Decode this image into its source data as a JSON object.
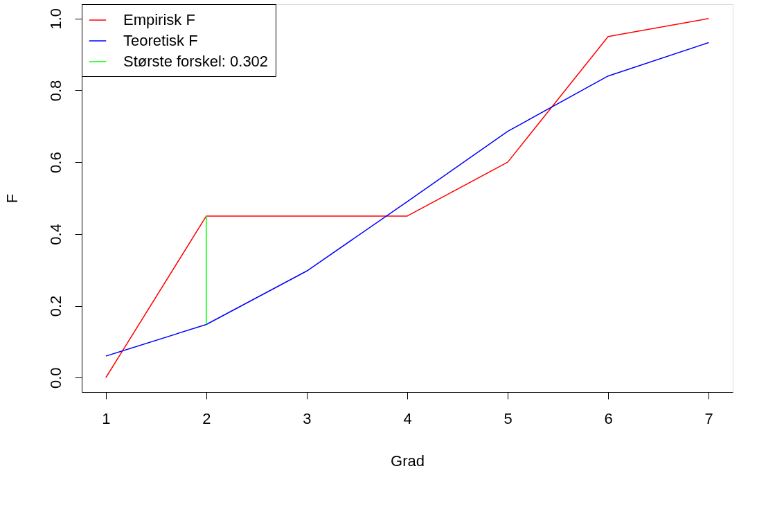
{
  "chart_data": {
    "type": "line",
    "xlabel": "Grad",
    "ylabel": "F",
    "xlim": [
      0.76,
      7.24
    ],
    "xticks": [
      1,
      2,
      3,
      4,
      5,
      6,
      7
    ],
    "ylim": [
      -0.04,
      1.04
    ],
    "yticks": [
      {
        "value": 0,
        "label": "0.0"
      },
      {
        "value": 0.2,
        "label": "0.2"
      },
      {
        "value": 0.4,
        "label": "0.4"
      },
      {
        "value": 0.6,
        "label": "0.6"
      },
      {
        "value": 0.8,
        "label": "0.8"
      },
      {
        "value": 1,
        "label": "1.0"
      }
    ],
    "grid": false,
    "legend": "top left",
    "marker": "none",
    "line_style": "solid",
    "series": [
      {
        "name": "Empirisk F",
        "color": "#ff0000",
        "x": [
          1,
          2,
          3,
          4,
          5,
          6,
          7
        ],
        "values": [
          0,
          0.45,
          0.45,
          0.45,
          0.6,
          0.95,
          1.0
        ]
      },
      {
        "name": "Teoretisk F",
        "color": "#0000ff",
        "x": [
          1,
          2,
          3,
          4,
          5,
          6,
          7
        ],
        "values": [
          0.06,
          0.148,
          0.297,
          0.49,
          0.686,
          0.84,
          0.933
        ]
      },
      {
        "name": "Største forskel: 0.302",
        "color": "#00ff00",
        "x": [
          2,
          2
        ],
        "values": [
          0.148,
          0.45
        ]
      }
    ]
  }
}
